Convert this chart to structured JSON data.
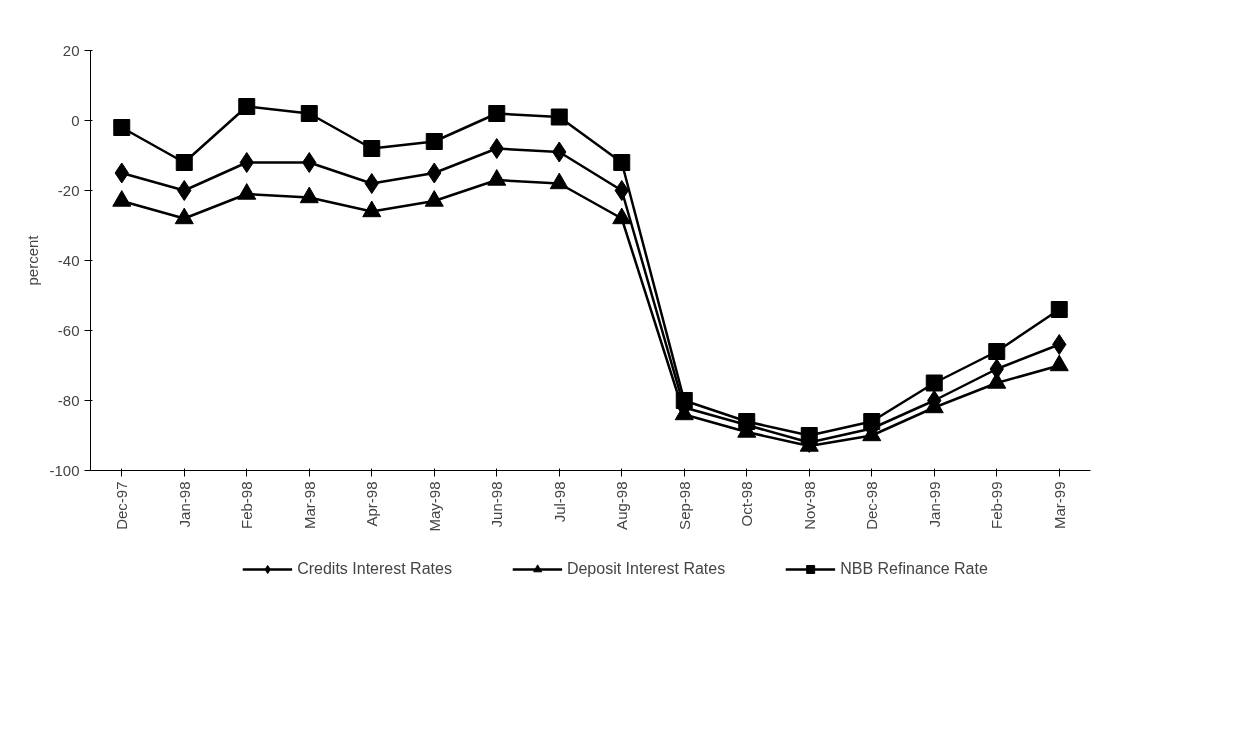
{
  "chart_data": {
    "type": "line",
    "ylabel": "percent",
    "categories": [
      "Dec-97",
      "Jan-98",
      "Feb-98",
      "Mar-98",
      "Apr-98",
      "May-98",
      "Jun-98",
      "Jul-98",
      "Aug-98",
      "Sep-98",
      "Oct-98",
      "Nov-98",
      "Dec-98",
      "Jan-99",
      "Feb-99",
      "Mar-99"
    ],
    "series": [
      {
        "name": "Credits Interest Rates",
        "color": "#000000",
        "marker": "diamond",
        "values": [
          -15,
          -20,
          -12,
          -12,
          -18,
          -15,
          -8,
          -9,
          -20,
          -82,
          -87,
          -92,
          -88,
          -80,
          -71,
          -64
        ]
      },
      {
        "name": "Deposit Interest Rates",
        "color": "#000000",
        "marker": "triangle",
        "values": [
          -23,
          -28,
          -21,
          -22,
          -26,
          -23,
          -17,
          -18,
          -28,
          -84,
          -89,
          -93,
          -90,
          -82,
          -75,
          -70
        ]
      },
      {
        "name": "NBB Refinance Rate",
        "color": "#000000",
        "marker": "square",
        "values": [
          -2,
          -12,
          4,
          2,
          -8,
          -6,
          2,
          1,
          -12,
          -80,
          -86,
          -90,
          -86,
          -75,
          -66,
          -54
        ]
      }
    ],
    "ylim": [
      -100,
      20
    ],
    "yticks": [
      -100,
      -80,
      -60,
      -40,
      -20,
      0,
      20
    ],
    "grid": false,
    "legend": "bottom",
    "line_style": "solid"
  }
}
